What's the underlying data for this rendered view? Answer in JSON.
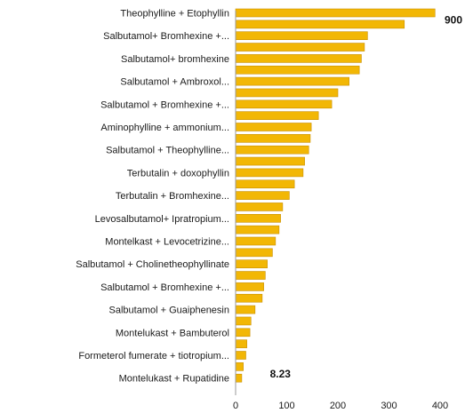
{
  "chart_data": {
    "type": "bar",
    "orientation": "horizontal",
    "xlim": [
      0,
      400
    ],
    "xticks": [
      "0",
      "100",
      "200",
      "300",
      "400"
    ],
    "grid": false,
    "colors": {
      "bar": "#F2B705",
      "bar_edge": "#C98F00",
      "axis": "#9A9A9A"
    },
    "bars": [
      {
        "label": "Theophylline + Etophyllin",
        "value": 390
      },
      {
        "label": "",
        "value": 330
      },
      {
        "label": "Salbutamol+ Bromhexine +...",
        "value": 258
      },
      {
        "label": "",
        "value": 252
      },
      {
        "label": "Salbutamol+ bromhexine",
        "value": 246
      },
      {
        "label": "",
        "value": 242
      },
      {
        "label": "Salbutamol + Ambroxol...",
        "value": 222
      },
      {
        "label": "",
        "value": 200
      },
      {
        "label": "Salbutamol + Bromhexine +...",
        "value": 188
      },
      {
        "label": "",
        "value": 162
      },
      {
        "label": "Aminophylline + ammonium...",
        "value": 148
      },
      {
        "label": "",
        "value": 146
      },
      {
        "label": "Salbutamol + Theophylline...",
        "value": 143
      },
      {
        "label": "",
        "value": 135
      },
      {
        "label": "Terbutalin + doxophyllin",
        "value": 132
      },
      {
        "label": "",
        "value": 115
      },
      {
        "label": "Terbutalin + Bromhexine...",
        "value": 105
      },
      {
        "label": "",
        "value": 92
      },
      {
        "label": "Levosalbutamol+ Ipratropium...",
        "value": 88
      },
      {
        "label": "",
        "value": 85
      },
      {
        "label": "Montelkast + Levocetrizine...",
        "value": 78
      },
      {
        "label": "",
        "value": 72
      },
      {
        "label": "Salbutamol + Cholinetheophyllinate",
        "value": 62
      },
      {
        "label": "",
        "value": 58
      },
      {
        "label": "Salbutamol + Bromhexine +...",
        "value": 55
      },
      {
        "label": "",
        "value": 52
      },
      {
        "label": "Salbutamol + Guaiphenesin",
        "value": 38
      },
      {
        "label": "",
        "value": 30
      },
      {
        "label": "Montelukast + Bambuterol",
        "value": 28
      },
      {
        "label": "",
        "value": 22
      },
      {
        "label": "Formeterol fumerate + tiotropium...",
        "value": 20
      },
      {
        "label": "",
        "value": 15
      },
      {
        "label": "Montelukast + Rupatidine",
        "value": 12
      }
    ],
    "annotations": [
      {
        "text": "900",
        "bar_index": 0
      },
      {
        "text": "8.23",
        "bar_index": 31
      }
    ]
  }
}
